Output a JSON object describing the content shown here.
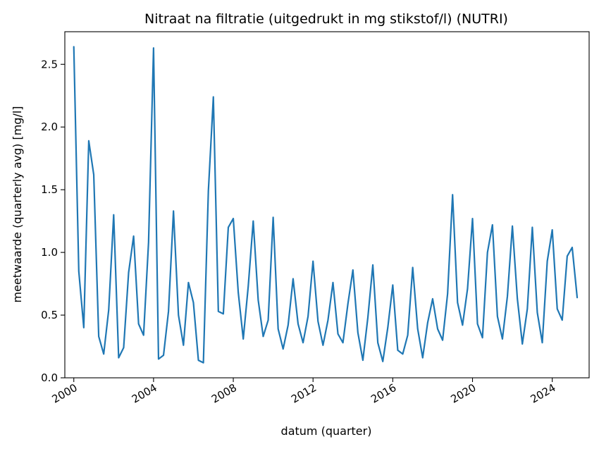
{
  "chart_data": {
    "type": "line",
    "title": "Nitraat na filtratie (uitgedrukt in mg stikstof/l) (NUTRI)",
    "xlabel": "datum (quarter)",
    "ylabel": "meetwaarde (quarterly avg) [mg/l]",
    "xlim": [
      1999.55,
      2025.85
    ],
    "ylim": [
      0,
      2.76
    ],
    "x_ticks": [
      2000,
      2004,
      2008,
      2012,
      2016,
      2020,
      2024
    ],
    "x_tick_labels": [
      "2000",
      "2004",
      "2008",
      "2012",
      "2016",
      "2020",
      "2024"
    ],
    "y_ticks": [
      0.0,
      0.5,
      1.0,
      1.5,
      2.0,
      2.5
    ],
    "y_tick_labels": [
      "0.0",
      "0.5",
      "1.0",
      "1.5",
      "2.0",
      "2.5"
    ],
    "grid": false,
    "line_color": "#1f77b4",
    "series": [
      {
        "x": [
          2000.0,
          2000.25,
          2000.5,
          2000.75,
          2001.0,
          2001.25,
          2001.5,
          2001.75,
          2002.0,
          2002.25,
          2002.5,
          2002.75,
          2003.0,
          2003.25,
          2003.5,
          2003.75,
          2004.0,
          2004.25,
          2004.5,
          2004.75,
          2005.0,
          2005.25,
          2005.5,
          2005.75,
          2006.0,
          2006.25,
          2006.5,
          2006.75,
          2007.0,
          2007.25,
          2007.5,
          2007.75,
          2008.0,
          2008.25,
          2008.5,
          2008.75,
          2009.0,
          2009.25,
          2009.5,
          2009.75,
          2010.0,
          2010.25,
          2010.5,
          2010.75,
          2011.0,
          2011.25,
          2011.5,
          2011.75,
          2012.0,
          2012.25,
          2012.5,
          2012.75,
          2013.0,
          2013.25,
          2013.5,
          2013.75,
          2014.0,
          2014.25,
          2014.5,
          2014.75,
          2015.0,
          2015.25,
          2015.5,
          2015.75,
          2016.0,
          2016.25,
          2016.5,
          2016.75,
          2017.0,
          2017.25,
          2017.5,
          2017.75,
          2018.0,
          2018.25,
          2018.5,
          2018.75,
          2019.0,
          2019.25,
          2019.5,
          2019.75,
          2020.0,
          2020.25,
          2020.5,
          2020.75,
          2021.0,
          2021.25,
          2021.5,
          2021.75,
          2022.0,
          2022.25,
          2022.5,
          2022.75,
          2023.0,
          2023.25,
          2023.5,
          2023.75,
          2024.0,
          2024.25,
          2024.5,
          2024.75,
          2025.0,
          2025.25
        ],
        "values": [
          2.64,
          0.85,
          0.4,
          1.89,
          1.62,
          0.33,
          0.19,
          0.54,
          1.3,
          0.16,
          0.24,
          0.84,
          1.13,
          0.43,
          0.34,
          1.08,
          2.63,
          0.15,
          0.18,
          0.53,
          1.33,
          0.5,
          0.26,
          0.76,
          0.6,
          0.14,
          0.12,
          1.49,
          2.24,
          0.53,
          0.51,
          1.2,
          1.27,
          0.68,
          0.31,
          0.73,
          1.25,
          0.62,
          0.33,
          0.46,
          1.28,
          0.39,
          0.23,
          0.42,
          0.79,
          0.43,
          0.28,
          0.49,
          0.93,
          0.45,
          0.26,
          0.46,
          0.76,
          0.35,
          0.28,
          0.59,
          0.86,
          0.36,
          0.14,
          0.48,
          0.9,
          0.28,
          0.13,
          0.4,
          0.74,
          0.22,
          0.19,
          0.34,
          0.88,
          0.39,
          0.16,
          0.44,
          0.63,
          0.39,
          0.3,
          0.67,
          1.46,
          0.6,
          0.42,
          0.71,
          1.27,
          0.43,
          0.32,
          1.0,
          1.22,
          0.49,
          0.31,
          0.65,
          1.21,
          0.63,
          0.27,
          0.55,
          1.2,
          0.52,
          0.28,
          0.93,
          1.18,
          0.55,
          0.46,
          0.97,
          1.04,
          0.64
        ]
      }
    ]
  }
}
